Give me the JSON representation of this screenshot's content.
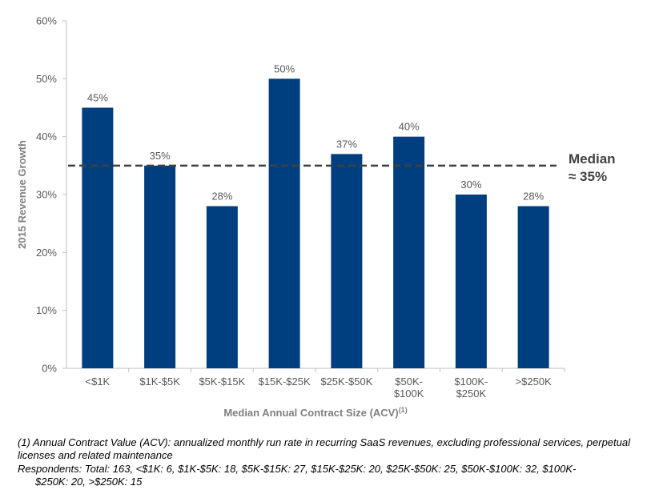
{
  "chart_data": {
    "type": "bar",
    "categories": [
      [
        "<$1K"
      ],
      [
        "$1K-$5K"
      ],
      [
        "$5K-$15K"
      ],
      [
        "$15K-$25K"
      ],
      [
        "$25K-$50K"
      ],
      [
        "$50K-",
        "$100K"
      ],
      [
        "$100K-",
        "$250K"
      ],
      [
        ">$250K"
      ]
    ],
    "values": [
      45,
      35,
      28,
      50,
      37,
      40,
      30,
      28
    ],
    "value_labels": [
      "45%",
      "35%",
      "28%",
      "50%",
      "37%",
      "40%",
      "30%",
      "28%"
    ],
    "ylim": [
      0,
      60
    ],
    "yticks": [
      "0%",
      "10%",
      "20%",
      "30%",
      "40%",
      "50%",
      "60%"
    ],
    "ylabel": "2015 Revenue Growth",
    "xlabel": "Median Annual Contract Size (ACV)",
    "xlabel_superscript": "(1)",
    "bar_color": "#003f7f",
    "median": {
      "value": 35,
      "label_line1": "Median",
      "label_line2": "≈ 35%"
    },
    "grid": false
  },
  "footnotes": {
    "note1": "(1) Annual Contract Value (ACV): annualized monthly run rate in recurring SaaS revenues, excluding professional services, perpetual licenses and related maintenance",
    "respondents_line1": "Respondents: Total: 163, <$1K: 6, $1K-$5K: 18, $5K-$15K: 27, $15K-$25K: 20, $25K-$50K: 25, $50K-$100K: 32, $100K-",
    "respondents_line2": "$250K: 20, >$250K: 15"
  }
}
